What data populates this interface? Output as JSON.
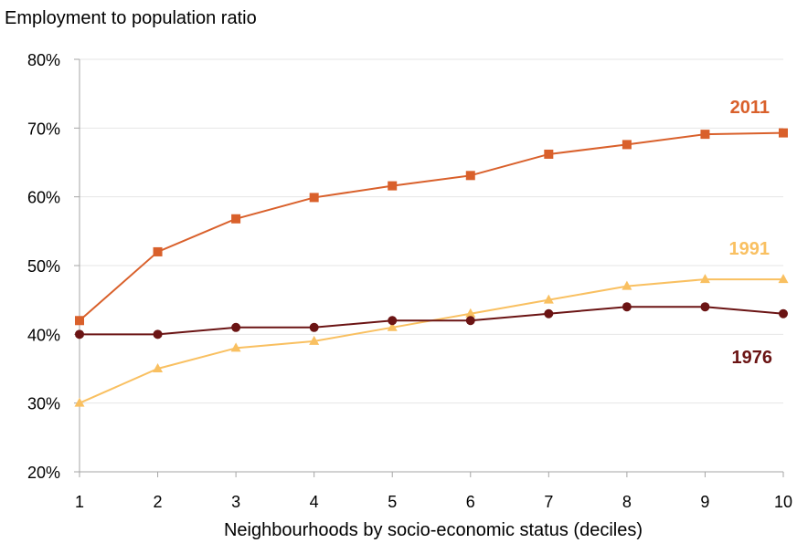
{
  "chart_data": {
    "type": "line",
    "ylabel": "Employment to population ratio",
    "xlabel": "Neighbourhoods by socio-economic status (deciles)",
    "x": [
      1,
      2,
      3,
      4,
      5,
      6,
      7,
      8,
      9,
      10
    ],
    "x_tick_labels": [
      "1",
      "2",
      "3",
      "4",
      "5",
      "6",
      "7",
      "8",
      "9",
      "10"
    ],
    "y_ticks": [
      20,
      30,
      40,
      50,
      60,
      70,
      80
    ],
    "y_tick_labels": [
      "20%",
      "30%",
      "40%",
      "50%",
      "60%",
      "70%",
      "80%"
    ],
    "ylim": [
      20,
      80
    ],
    "xlim": [
      1,
      10
    ],
    "grid": true,
    "legend": "inline labels at right",
    "series": [
      {
        "name": "2011",
        "color": "#d9602b",
        "marker": "square",
        "values": [
          42,
          52,
          56.8,
          59.9,
          61.6,
          63.1,
          66.2,
          67.6,
          69.1,
          69.3
        ]
      },
      {
        "name": "1991",
        "color": "#f9c061",
        "marker": "triangle",
        "values": [
          30,
          35,
          38,
          39,
          41,
          43,
          45,
          47,
          48,
          48
        ]
      },
      {
        "name": "1976",
        "color": "#6b1414",
        "marker": "circle",
        "values": [
          40,
          40,
          41,
          41,
          42,
          42,
          43,
          44,
          44,
          43
        ]
      }
    ]
  }
}
